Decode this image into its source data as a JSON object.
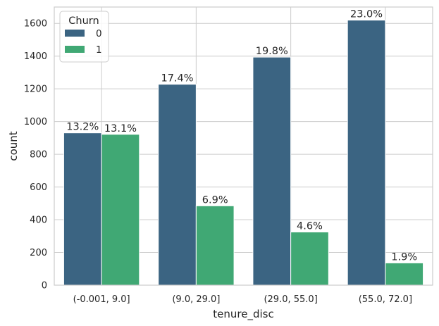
{
  "chart_data": {
    "type": "bar",
    "title": "",
    "xlabel": "tenure_disc",
    "ylabel": "count",
    "categories": [
      "(-0.001, 9.0]",
      "(9.0, 29.0]",
      "(29.0, 55.0]",
      "(55.0, 72.0]"
    ],
    "ylim": [
      0,
      1700
    ],
    "yticks": [
      0,
      200,
      400,
      600,
      800,
      1000,
      1200,
      1400,
      1600
    ],
    "grid": true,
    "legend": {
      "title": "Churn",
      "placement": "top-left"
    },
    "series": [
      {
        "name": "0",
        "color": "#3b6482",
        "values": [
          931,
          1228,
          1394,
          1620
        ],
        "labels": [
          "13.2%",
          "17.4%",
          "19.8%",
          "23.0%"
        ]
      },
      {
        "name": "1",
        "color": "#40a874",
        "values": [
          922,
          485,
          325,
          136
        ],
        "labels": [
          "13.1%",
          "6.9%",
          "4.6%",
          "1.9%"
        ]
      }
    ]
  }
}
